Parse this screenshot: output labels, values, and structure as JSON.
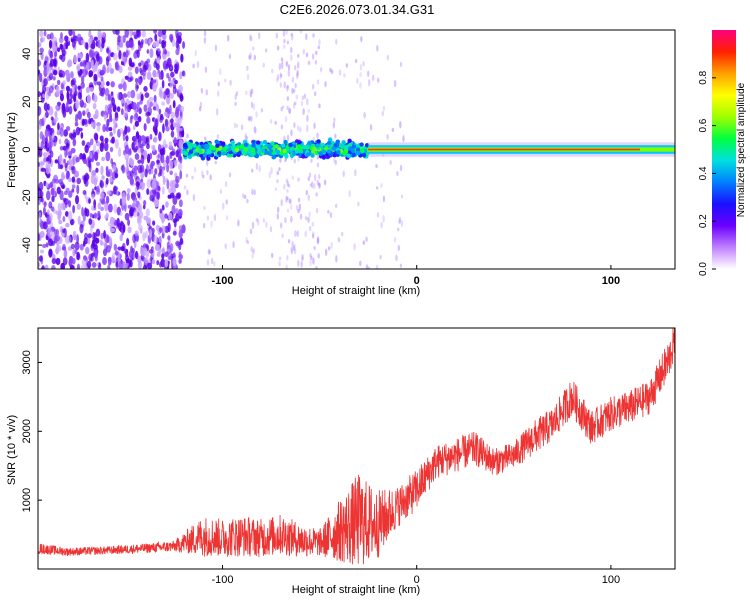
{
  "title": "C2E6.2026.073.01.34.G31",
  "colors": {
    "snr_line": "#ee3333",
    "scatter_base": "#6a00ff"
  },
  "chart_data": [
    {
      "type": "heatmap",
      "title": "C2E6.2026.073.01.34.G31",
      "xlabel": "Height of straight line (km)",
      "ylabel": "Frequency (Hz)",
      "xlim": [
        -195,
        133
      ],
      "ylim": [
        -50,
        50
      ],
      "x_ticks": [
        -100,
        0,
        100
      ],
      "x_tick_labels": [
        "-100",
        "0",
        "100"
      ],
      "y_ticks": [
        -40,
        -20,
        0,
        20,
        40
      ],
      "y_tick_labels": [
        "-40",
        "-20",
        "0",
        "20",
        "40"
      ],
      "colorbar": {
        "label": "Normalized spectral amplitude",
        "range": [
          0,
          1
        ],
        "ticks": [
          0,
          0.2,
          0.4,
          0.6,
          0.8
        ],
        "tick_labels": [
          "0.0",
          "0.2",
          "0.4",
          "0.6",
          "0.8"
        ],
        "colormap": [
          "#ffffff",
          "#c080ff",
          "#6a00ff",
          "#1a10ff",
          "#0080ff",
          "#00e0e0",
          "#00ff40",
          "#a0ff00",
          "#ffff00",
          "#ffa000",
          "#ff2000",
          "#ff0080"
        ]
      },
      "regions": [
        {
          "x_range": [
            -195,
            -120
          ],
          "freq_spread": 50,
          "amplitude": 0.18,
          "description_values": "broad noise"
        },
        {
          "x_range": [
            -120,
            -25
          ],
          "freq_center": 0,
          "freq_spread": 5,
          "amplitude": 0.4
        },
        {
          "x_range": [
            -25,
            133
          ],
          "freq_center": 0,
          "freq_spread": 1,
          "amplitude": 0.9
        }
      ]
    },
    {
      "type": "line",
      "xlabel": "Height of straight line (km)",
      "ylabel": "SNR (10 * v/v)",
      "xlim": [
        -195,
        133
      ],
      "ylim": [
        0,
        3500
      ],
      "x_ticks": [
        -100,
        0,
        100
      ],
      "x_tick_labels": [
        "-100",
        "0",
        "100"
      ],
      "y_ticks": [
        1000,
        2000,
        3000
      ],
      "y_tick_labels": [
        "1000",
        "2000",
        "3000"
      ],
      "series": [
        {
          "name": "SNR",
          "x": [
            -195,
            -180,
            -160,
            -140,
            -125,
            -110,
            -100,
            -90,
            -80,
            -70,
            -60,
            -50,
            -40,
            -30,
            -20,
            -10,
            0,
            10,
            20,
            30,
            40,
            50,
            60,
            70,
            80,
            90,
            100,
            110,
            120,
            130,
            133
          ],
          "y": [
            300,
            250,
            270,
            300,
            330,
            480,
            450,
            480,
            450,
            500,
            420,
            380,
            550,
            700,
            650,
            900,
            1150,
            1550,
            1650,
            1750,
            1550,
            1650,
            1900,
            2100,
            2500,
            2050,
            2250,
            2350,
            2500,
            3050,
            3350
          ],
          "spread": [
            80,
            60,
            60,
            70,
            80,
            300,
            280,
            300,
            280,
            300,
            250,
            200,
            450,
            700,
            500,
            300,
            300,
            250,
            250,
            250,
            200,
            200,
            250,
            250,
            280,
            250,
            250,
            250,
            250,
            300,
            250
          ]
        }
      ]
    }
  ]
}
